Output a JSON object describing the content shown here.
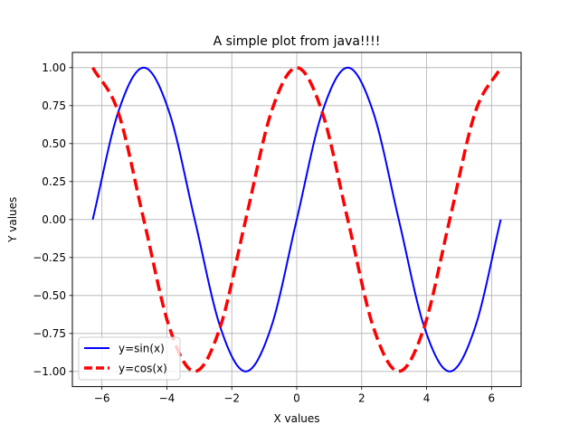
{
  "chart_data": {
    "type": "line",
    "title": "A simple plot from java!!!!",
    "xlabel": "X values",
    "ylabel": "Y values",
    "xlim": [
      -6.91,
      6.91
    ],
    "ylim": [
      -1.1,
      1.1
    ],
    "x_ticks": [
      -6,
      -4,
      -2,
      0,
      2,
      4,
      6
    ],
    "x_tick_labels": [
      "−6",
      "−4",
      "−2",
      "0",
      "2",
      "4",
      "6"
    ],
    "y_ticks": [
      -1.0,
      -0.75,
      -0.5,
      -0.25,
      0.0,
      0.25,
      0.5,
      0.75,
      1.0
    ],
    "y_tick_labels": [
      "−1.00",
      "−0.75",
      "−0.50",
      "−0.25",
      "0.00",
      "0.25",
      "0.50",
      "0.75",
      "1.00"
    ],
    "grid": true,
    "legend_position": "lower-left",
    "series": [
      {
        "name": "y=sin(x)",
        "color": "#0000ff",
        "style": "solid",
        "x": [
          -6.283,
          -5.498,
          -4.712,
          -3.927,
          -3.142,
          -2.356,
          -1.571,
          -0.785,
          0.0,
          0.785,
          1.571,
          2.356,
          3.142,
          3.927,
          4.712,
          5.498,
          6.283
        ],
        "y": [
          0.0,
          0.707,
          1.0,
          0.707,
          0.0,
          -0.707,
          -1.0,
          -0.707,
          0.0,
          0.707,
          1.0,
          0.707,
          0.0,
          -0.707,
          -1.0,
          -0.707,
          0.0
        ]
      },
      {
        "name": "y=cos(x)",
        "color": "#ff0000",
        "style": "dashed",
        "x": [
          -6.283,
          -5.498,
          -4.712,
          -3.927,
          -3.142,
          -2.356,
          -1.571,
          -0.785,
          0.0,
          0.785,
          1.571,
          2.356,
          3.142,
          3.927,
          4.712,
          5.498,
          6.283
        ],
        "y": [
          1.0,
          0.707,
          0.0,
          -0.707,
          -1.0,
          -0.707,
          0.0,
          0.707,
          1.0,
          0.707,
          0.0,
          -0.707,
          -1.0,
          -0.707,
          0.0,
          0.707,
          1.0
        ]
      }
    ]
  }
}
